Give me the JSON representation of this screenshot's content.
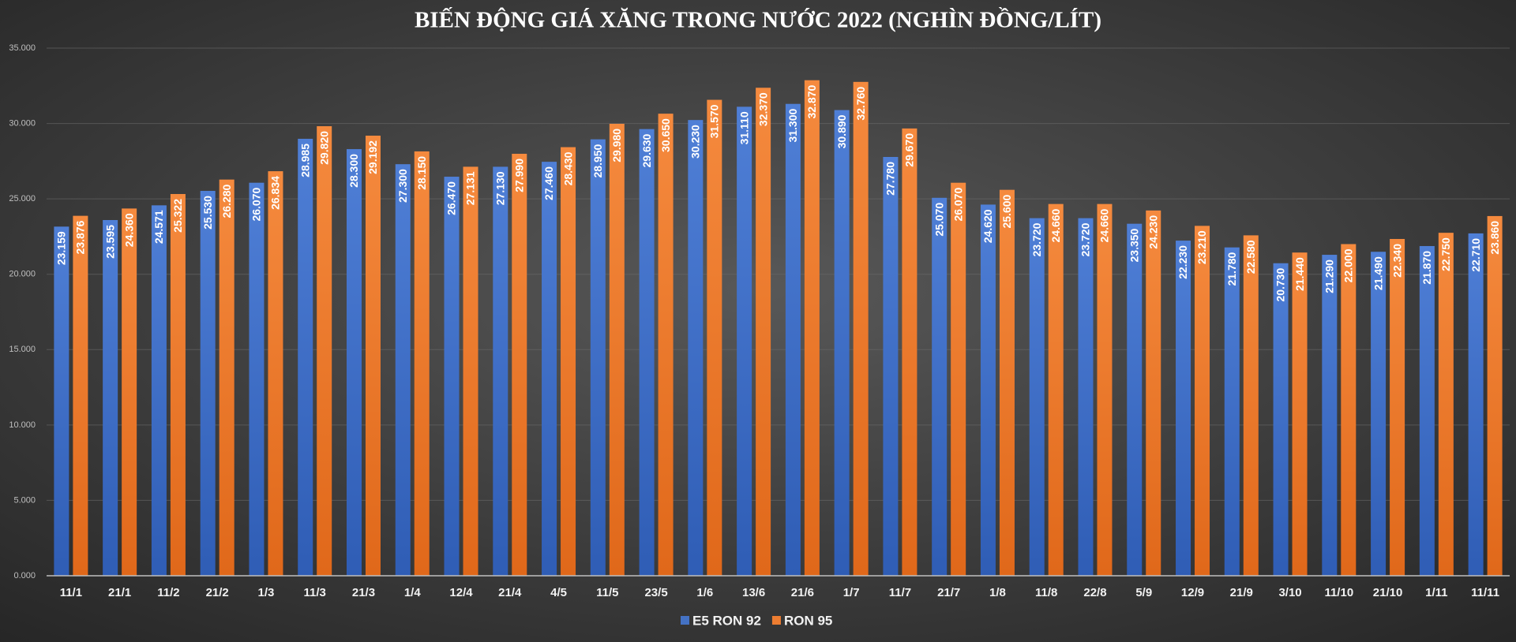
{
  "chart_data": {
    "type": "bar",
    "title": "BIẾN ĐỘNG GIÁ XĂNG TRONG NƯỚC 2022 (NGHÌN ĐỒNG/LÍT)",
    "categories": [
      "11/1",
      "21/1",
      "11/2",
      "21/2",
      "1/3",
      "11/3",
      "21/3",
      "1/4",
      "12/4",
      "21/4",
      "4/5",
      "11/5",
      "23/5",
      "1/6",
      "13/6",
      "21/6",
      "1/7",
      "11/7",
      "21/7",
      "1/8",
      "11/8",
      "22/8",
      "5/9",
      "12/9",
      "21/9",
      "3/10",
      "11/10",
      "21/10",
      "1/11",
      "11/11"
    ],
    "series": [
      {
        "name": "E5 RON 92",
        "color": "#4472c4",
        "values": [
          23159,
          23595,
          24571,
          25530,
          26070,
          28985,
          28300,
          27300,
          26470,
          27130,
          27460,
          28950,
          29630,
          30230,
          31110,
          31300,
          30890,
          27780,
          25070,
          24620,
          23720,
          23720,
          23350,
          22230,
          21780,
          20730,
          21290,
          21490,
          21870,
          22710
        ],
        "value_labels": [
          "23.159",
          "23.595",
          "24.571",
          "25.530",
          "26.070",
          "28.985",
          "28.300",
          "27.300",
          "26.470",
          "27.130",
          "27.460",
          "28.950",
          "29.630",
          "30.230",
          "31.110",
          "31.300",
          "30.890",
          "27.780",
          "25.070",
          "24.620",
          "23.720",
          "23.720",
          "23.350",
          "22.230",
          "21.780",
          "20.730",
          "21.290",
          "21.490",
          "21.870",
          "22.710"
        ]
      },
      {
        "name": "RON 95",
        "color": "#ed7d31",
        "values": [
          23876,
          24360,
          25322,
          26280,
          26834,
          29820,
          29192,
          28150,
          27131,
          27990,
          28430,
          29980,
          30650,
          31570,
          32370,
          32870,
          32760,
          29670,
          26070,
          25600,
          24660,
          24660,
          24230,
          23210,
          22580,
          21440,
          22000,
          22340,
          22750,
          23860
        ],
        "value_labels": [
          "23.876",
          "24.360",
          "25.322",
          "26.280",
          "26.834",
          "29.820",
          "29.192",
          "28.150",
          "27.131",
          "27.990",
          "28.430",
          "29.980",
          "30.650",
          "31.570",
          "32.370",
          "32.870",
          "32.760",
          "29.670",
          "26.070",
          "25.600",
          "24.660",
          "24.660",
          "24.230",
          "23.210",
          "22.580",
          "21.440",
          "22.000",
          "22.340",
          "22.750",
          "23.860"
        ]
      }
    ],
    "ylim": [
      0,
      35000
    ],
    "yticks": [
      {
        "value": 0,
        "label": "0.000"
      },
      {
        "value": 5000,
        "label": "5.000"
      },
      {
        "value": 10000,
        "label": "10.000"
      },
      {
        "value": 15000,
        "label": "15.000"
      },
      {
        "value": 20000,
        "label": "20.000"
      },
      {
        "value": 25000,
        "label": "25.000"
      },
      {
        "value": 30000,
        "label": "30.000"
      },
      {
        "value": 35000,
        "label": "35.000"
      }
    ],
    "grid": true,
    "legend": "bottom"
  }
}
